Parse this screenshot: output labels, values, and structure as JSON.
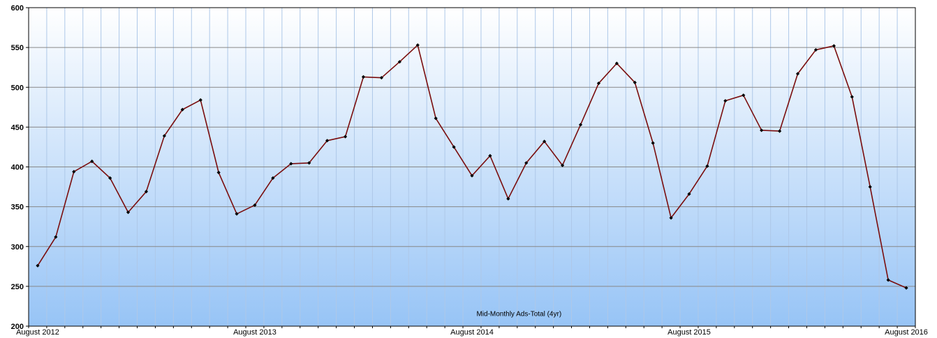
{
  "chart_data": {
    "type": "line",
    "title": "",
    "caption": "Mid-Monthly Ads-Total (4yr)",
    "xlabel": "",
    "ylabel": "",
    "ylim": [
      200,
      600
    ],
    "yticks": [
      200,
      250,
      300,
      350,
      400,
      450,
      500,
      550,
      600
    ],
    "grid": true,
    "legend": "none",
    "x_tick_labels": [
      "August 2012",
      "August 2013",
      "August 2014",
      "August 2015",
      "August 2016"
    ],
    "x_tick_months": [
      0,
      12,
      24,
      36,
      48
    ],
    "x": [
      "2012-08",
      "2012-09",
      "2012-10",
      "2012-11",
      "2012-12",
      "2013-01",
      "2013-02",
      "2013-03",
      "2013-04",
      "2013-05",
      "2013-06",
      "2013-07",
      "2013-08",
      "2013-09",
      "2013-10",
      "2013-11",
      "2013-12",
      "2014-01",
      "2014-02",
      "2014-03",
      "2014-04",
      "2014-05",
      "2014-06",
      "2014-07",
      "2014-08",
      "2014-09",
      "2014-10",
      "2014-11",
      "2014-12",
      "2015-01",
      "2015-02",
      "2015-03",
      "2015-04",
      "2015-05",
      "2015-06",
      "2015-07",
      "2015-08",
      "2015-09",
      "2015-10",
      "2015-11",
      "2015-12",
      "2016-01",
      "2016-02",
      "2016-03",
      "2016-04",
      "2016-05",
      "2016-06",
      "2016-07",
      "2016-08"
    ],
    "series": [
      {
        "name": "",
        "values": [
          276,
          312,
          394,
          407,
          386,
          343,
          369,
          439,
          472,
          484,
          393,
          341,
          352,
          386,
          404,
          405,
          433,
          438,
          513,
          512,
          532,
          553,
          461,
          425,
          389,
          414,
          360,
          405,
          432,
          402,
          453,
          505,
          530,
          506,
          430,
          336,
          366,
          401,
          483,
          490,
          446,
          445,
          517,
          547,
          552,
          488,
          375,
          258,
          248
        ]
      }
    ],
    "colors": {
      "line": "#7a0d0d",
      "marker": "#000000",
      "grid_major": "#888888",
      "grid_minor": "#aec8e8",
      "background_top": "#ffffff",
      "background_bottom": "#97c4f6"
    }
  }
}
